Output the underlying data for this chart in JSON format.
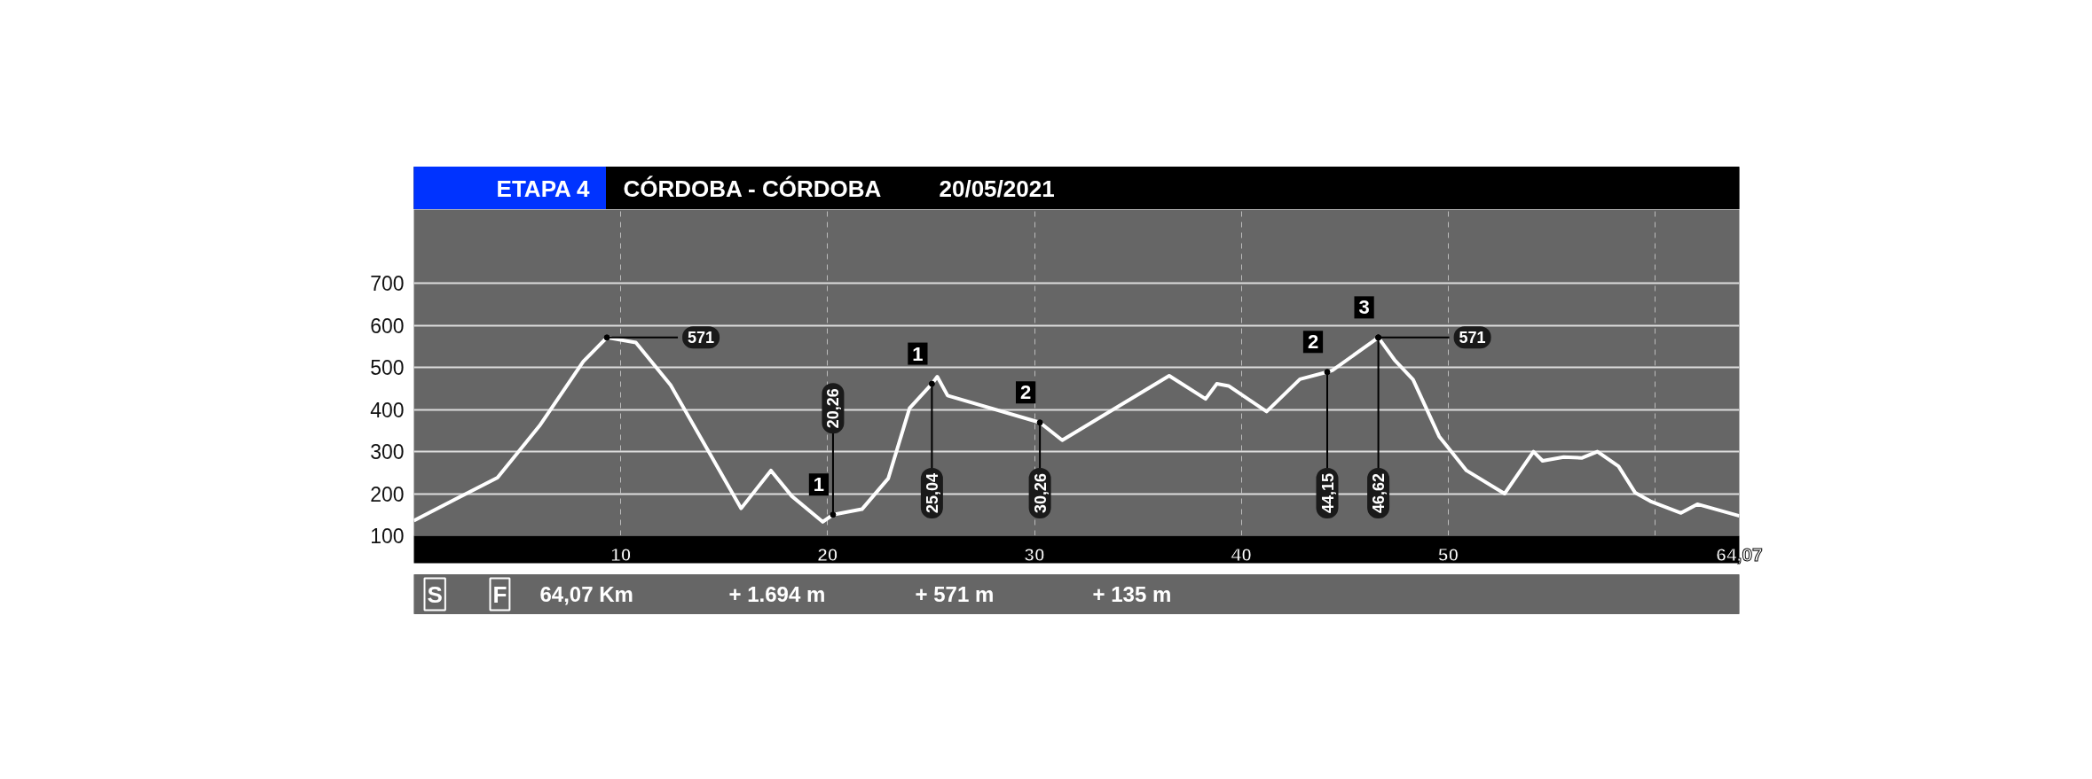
{
  "chart_data": {
    "type": "line",
    "title": "ETAPA 4",
    "subtitle": "CÓRDOBA - CÓRDOBA",
    "x": [
      0,
      4.04,
      6.07,
      8.19,
      9.33,
      10.73,
      12.41,
      15.82,
      17.26,
      18.27,
      19.76,
      20.26,
      21.66,
      22.93,
      23.96,
      25.04,
      25.3,
      25.8,
      30.26,
      31.34,
      36.51,
      38.27,
      38.81,
      39.38,
      41.22,
      42.83,
      44.15,
      44.4,
      46.62,
      47.4,
      48.3,
      49.56,
      50.88,
      52.72,
      54.12,
      54.56,
      55.58,
      56.47,
      57.21,
      58.23,
      59.04,
      59.77,
      61.25,
      62.04,
      64.07
    ],
    "series": [
      {
        "color": "#ffffff",
        "values": [
          136,
          238,
          361,
          514,
          571,
          559,
          458,
          165,
          255,
          194,
          133,
          150,
          163,
          236,
          403,
          461,
          478,
          433,
          369,
          327,
          480,
          425,
          461,
          456,
          395,
          472,
          489,
          493,
          571,
          518,
          471,
          336,
          255,
          200,
          300,
          278,
          287,
          285,
          300,
          265,
          202,
          182,
          154,
          175,
          147
        ]
      }
    ],
    "xlim": [
      0,
      64.07
    ],
    "ylim": [
      100,
      875
    ],
    "xticks": [
      10,
      20,
      30,
      40,
      50,
      {
        "value": 60,
        "label": null
      },
      {
        "value": 64.07,
        "label": "64,07"
      }
    ],
    "yticks": [
      100,
      200,
      300,
      400,
      500,
      600,
      700
    ],
    "grid": true,
    "ref_lines": [
      {
        "axis": "x",
        "value": 20.26,
        "label": "20,26"
      },
      {
        "axis": "x",
        "value": 25.04,
        "label": "25,04"
      },
      {
        "axis": "x",
        "value": 30.26,
        "label": "30,26"
      },
      {
        "axis": "x",
        "value": 44.15,
        "label": "44,15"
      },
      {
        "axis": "x",
        "value": 46.62,
        "label": "46,62"
      }
    ],
    "annotations": [
      {
        "text": "571",
        "x": 9.33,
        "y": 571
      },
      {
        "text": "571",
        "x": 46.62,
        "y": 571
      },
      {
        "text": "1",
        "x": 20.26,
        "y": 150
      },
      {
        "text": "1",
        "x": 25.04,
        "y": 461
      },
      {
        "text": "2",
        "x": 30.26,
        "y": 369
      },
      {
        "text": "2",
        "x": 44.15,
        "y": 489
      },
      {
        "text": "3",
        "x": 46.62,
        "y": 571
      },
      "20/05/2021",
      "S",
      "F",
      "64,07 Km",
      "+ 1.694 m",
      "+ 571 m",
      "+ 135 m"
    ]
  }
}
